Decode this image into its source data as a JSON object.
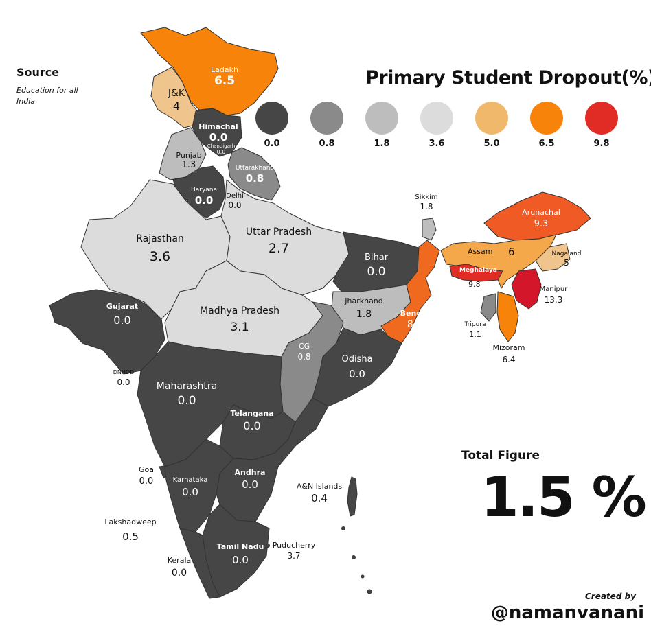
{
  "source": {
    "title": "Source",
    "subtitle": "Education for all India"
  },
  "title": "Primary Student Dropout(%)",
  "legend": [
    {
      "value": "0.0",
      "color": "#464646"
    },
    {
      "value": "0.8",
      "color": "#8a8a8a"
    },
    {
      "value": "1.8",
      "color": "#bdbdbd"
    },
    {
      "value": "3.6",
      "color": "#dcdcdc"
    },
    {
      "value": "5.0",
      "color": "#f0b86a"
    },
    {
      "value": "6.5",
      "color": "#f7830b"
    },
    {
      "value": "9.8",
      "color": "#e02c24"
    }
  ],
  "regions": {
    "ladakh": {
      "name": "Ladakh",
      "value": "6.5"
    },
    "jk": {
      "name": "J&K",
      "value": "4"
    },
    "himachal": {
      "name": "Himachal",
      "value": "0.0"
    },
    "chandigarh": {
      "name": "Chandigarh",
      "value": "0.0"
    },
    "punjab": {
      "name": "Punjab",
      "value": "1.3"
    },
    "uttarakhand": {
      "name": "Uttarakhand",
      "value": "0.8"
    },
    "haryana": {
      "name": "Haryana",
      "value": "0.0"
    },
    "delhi": {
      "name": "Delhi",
      "value": "0.0"
    },
    "rajasthan": {
      "name": "Rajasthan",
      "value": "3.6"
    },
    "up": {
      "name": "Uttar Pradesh",
      "value": "2.7"
    },
    "bihar": {
      "name": "Bihar",
      "value": "0.0"
    },
    "sikkim": {
      "name": "Sikkim",
      "value": "1.8"
    },
    "arunachal": {
      "name": "Arunachal",
      "value": "9.3"
    },
    "assam": {
      "name": "Assam",
      "value": "6"
    },
    "nagaland": {
      "name": "Nagaland",
      "value": "5"
    },
    "meghalaya": {
      "name": "Meghalaya",
      "value": "9.8"
    },
    "manipur": {
      "name": "Manipur",
      "value": "13.3"
    },
    "tripura": {
      "name": "Tripura",
      "value": "1.1"
    },
    "mizoram": {
      "name": "Mizoram",
      "value": "6.4"
    },
    "gujarat": {
      "name": "Gujarat",
      "value": "0.0"
    },
    "mp": {
      "name": "Madhya Pradesh",
      "value": "3.1"
    },
    "jharkhand": {
      "name": "Jharkhand",
      "value": "1.8"
    },
    "bengal": {
      "name": "Bengal",
      "value": "8.6"
    },
    "cg": {
      "name": "CG",
      "value": "0.8"
    },
    "odisha": {
      "name": "Odisha",
      "value": "0.0"
    },
    "dnhdd": {
      "name": "DNHDD",
      "value": "0.0"
    },
    "maharashtra": {
      "name": "Maharashtra",
      "value": "0.0"
    },
    "telangana": {
      "name": "Telangana",
      "value": "0.0"
    },
    "goa": {
      "name": "Goa",
      "value": "0.0"
    },
    "karnataka": {
      "name": "Karnataka",
      "value": "0.0"
    },
    "andhra": {
      "name": "Andhra",
      "value": "0.0"
    },
    "an": {
      "name": "A&N Islands",
      "value": "0.4"
    },
    "lakshadweep": {
      "name": "Lakshadweep",
      "value": "0.5"
    },
    "tamilnadu": {
      "name": "Tamil Nadu",
      "value": "0.0"
    },
    "puducherry": {
      "name": "Puducherry",
      "value": "3.7"
    },
    "kerala": {
      "name": "Kerala",
      "value": "0.0"
    }
  },
  "total": {
    "label": "Total Figure",
    "value": "1.5 %"
  },
  "credit": {
    "label": "Created by",
    "handle": "@namanvanani"
  }
}
